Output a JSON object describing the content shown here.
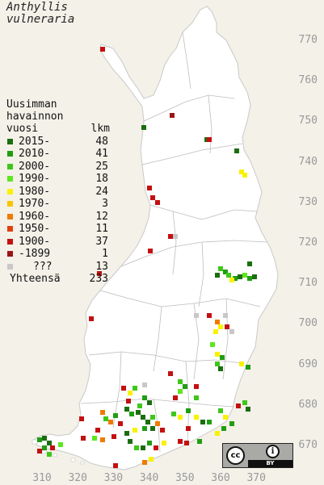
{
  "title": {
    "line1": "Anthyllis",
    "line2": "vulneraria"
  },
  "legend": {
    "header_left": "Uusimman\nhavainnon\nvuosi",
    "header_right": "lkm",
    "rows": [
      {
        "label": "2015-",
        "count": "48",
        "color": "#1a6e0f"
      },
      {
        "label": "2010-",
        "count": "41",
        "color": "#219d14"
      },
      {
        "label": "2000-",
        "count": "25",
        "color": "#3ec71a"
      },
      {
        "label": "1990-",
        "count": "18",
        "color": "#5fe61e"
      },
      {
        "label": "1980-",
        "count": "24",
        "color": "#f8f200"
      },
      {
        "label": "1970-",
        "count": "3",
        "color": "#f7c500"
      },
      {
        "label": "1960-",
        "count": "12",
        "color": "#f07a00"
      },
      {
        "label": "1950-",
        "count": "11",
        "color": "#e24010"
      },
      {
        "label": "1900-",
        "count": "37",
        "color": "#c31010"
      },
      {
        "label": "-1899",
        "count": "1",
        "color": "#9c1414"
      },
      {
        "label": "???",
        "count": "13",
        "color": "#c8c8c8"
      }
    ],
    "total_label": "Yhteensä",
    "total_count": "233"
  },
  "axes": {
    "y_ticks": [
      "770",
      "760",
      "750",
      "740",
      "730",
      "720",
      "710",
      "700",
      "690",
      "680",
      "670"
    ],
    "x_ticks": [
      "310",
      "320",
      "330",
      "340",
      "350",
      "360",
      "370"
    ]
  },
  "license": {
    "cc": "cc",
    "by_symbol": "i",
    "by_text": "BY"
  },
  "colors": {
    "background": "#f3f1e8",
    "land": "#ffffff",
    "border": "#b8b8b8",
    "axis_text": "#999999"
  }
}
